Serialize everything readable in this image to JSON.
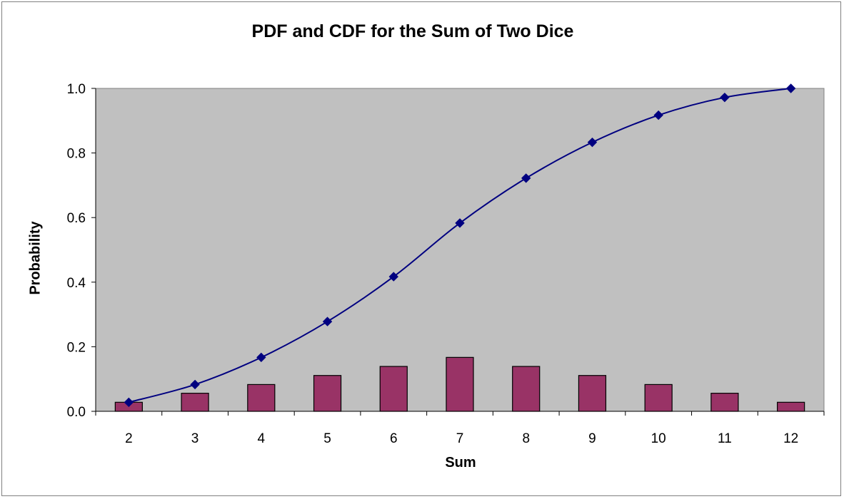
{
  "chart_data": {
    "type": "bar",
    "title": "PDF and CDF for the Sum of Two Dice",
    "xlabel": "Sum",
    "ylabel": "Probability",
    "categories": [
      "2",
      "3",
      "4",
      "5",
      "6",
      "7",
      "8",
      "9",
      "10",
      "11",
      "12"
    ],
    "ylim": [
      0,
      1
    ],
    "yticks": [
      "0.0",
      "0.2",
      "0.4",
      "0.6",
      "0.8",
      "1.0"
    ],
    "grid": false,
    "legend": "none",
    "series": [
      {
        "type": "bar",
        "values": [
          0.028,
          0.056,
          0.083,
          0.111,
          0.139,
          0.167,
          0.139,
          0.111,
          0.083,
          0.056,
          0.028
        ],
        "color": "#993366"
      },
      {
        "type": "line",
        "values": [
          0.028,
          0.083,
          0.167,
          0.278,
          0.417,
          0.583,
          0.722,
          0.833,
          0.917,
          0.972,
          1.0
        ],
        "color": "#000080"
      }
    ],
    "plot_background": "#c0c0c0"
  }
}
